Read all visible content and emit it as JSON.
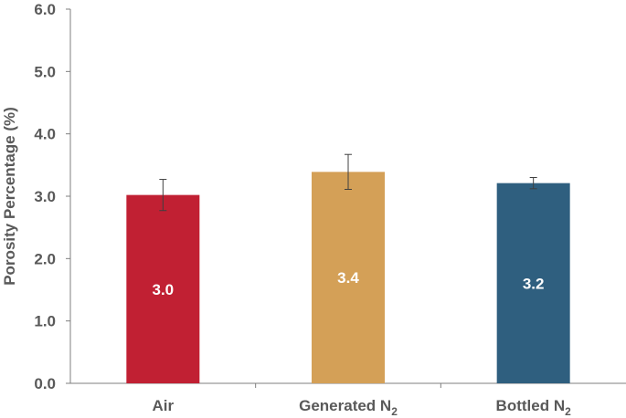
{
  "chart_data": {
    "type": "bar",
    "title": "",
    "xlabel": "",
    "ylabel": "Porosity Percentage (%)",
    "ylim": [
      0,
      6.0
    ],
    "yticks": [
      "0.0",
      "1.0",
      "2.0",
      "3.0",
      "4.0",
      "5.0",
      "6.0"
    ],
    "grid": false,
    "legend": "none",
    "categories": [
      {
        "text": "Air",
        "sub": ""
      },
      {
        "text": "Generated N",
        "sub": "2"
      },
      {
        "text": "Bottled N",
        "sub": "2"
      }
    ],
    "values": [
      3.02,
      3.39,
      3.21
    ],
    "data_labels": [
      "3.0",
      "3.4",
      "3.2"
    ],
    "error": [
      0.25,
      0.28,
      0.09
    ],
    "colors": [
      "#c12033",
      "#d4a057",
      "#2f5f7f"
    ]
  }
}
